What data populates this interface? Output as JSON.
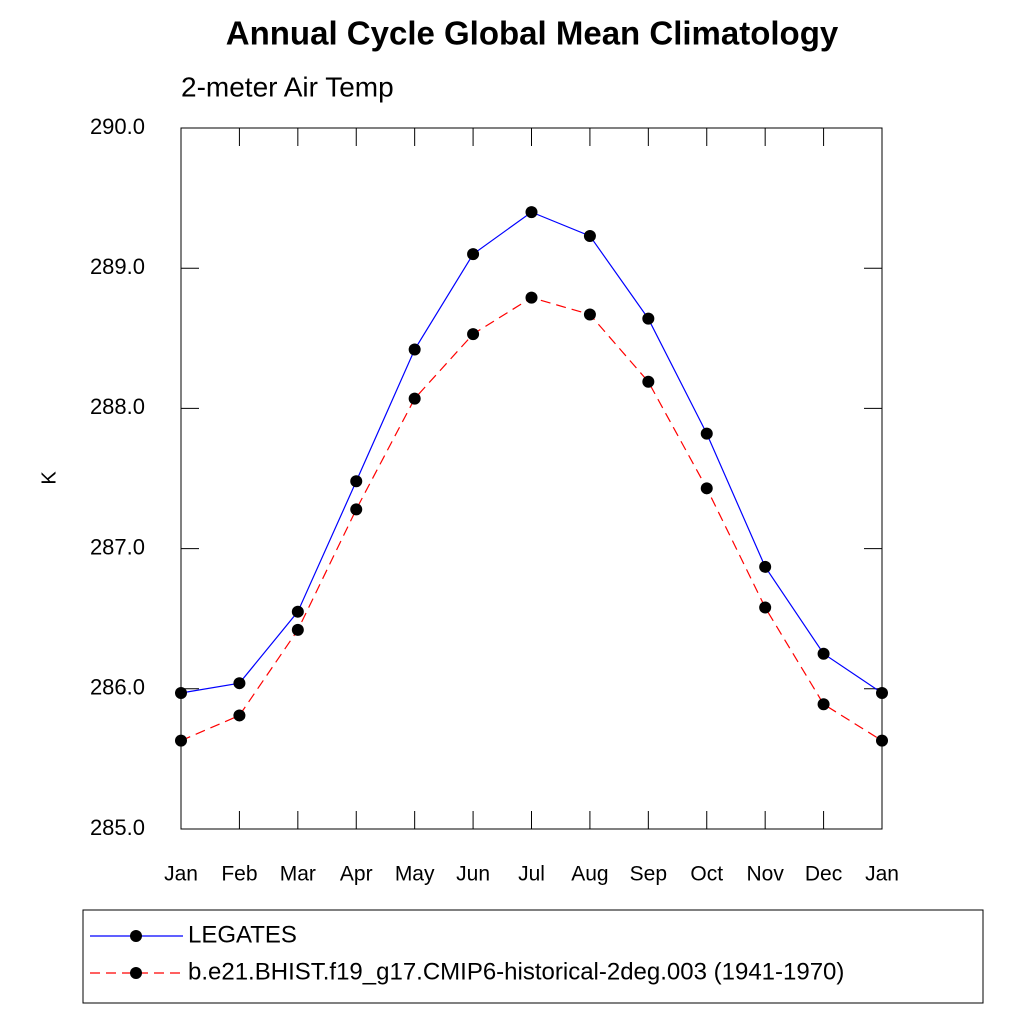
{
  "chart_data": {
    "type": "line",
    "title": "Annual Cycle Global Mean Climatology",
    "subtitle": "2-meter Air Temp",
    "y_label": "K",
    "categories": [
      "Jan",
      "Feb",
      "Mar",
      "Apr",
      "May",
      "Jun",
      "Jul",
      "Aug",
      "Sep",
      "Oct",
      "Nov",
      "Dec",
      "Jan"
    ],
    "ylim": [
      285,
      290
    ],
    "yticks": [
      {
        "value": 285,
        "label": "285.0"
      },
      {
        "value": 286,
        "label": "286.0"
      },
      {
        "value": 287,
        "label": "287.0"
      },
      {
        "value": 288,
        "label": "288.0"
      },
      {
        "value": 289,
        "label": "289.0"
      },
      {
        "value": 290,
        "label": "290.0"
      }
    ],
    "series": [
      {
        "name": "LEGATES",
        "color": "#0000ff",
        "dash": "solid",
        "values": [
          285.97,
          286.04,
          286.55,
          287.48,
          288.42,
          289.1,
          289.4,
          289.23,
          288.64,
          287.82,
          286.87,
          286.25,
          285.97
        ]
      },
      {
        "name": "b.e21.BHIST.f19_g17.CMIP6-historical-2deg.003 (1941-1970)",
        "color": "#ff0000",
        "dash": "dashed",
        "values": [
          285.63,
          285.81,
          286.42,
          287.28,
          288.07,
          288.53,
          288.79,
          288.67,
          288.19,
          287.43,
          286.58,
          285.89,
          285.63
        ]
      }
    ]
  }
}
